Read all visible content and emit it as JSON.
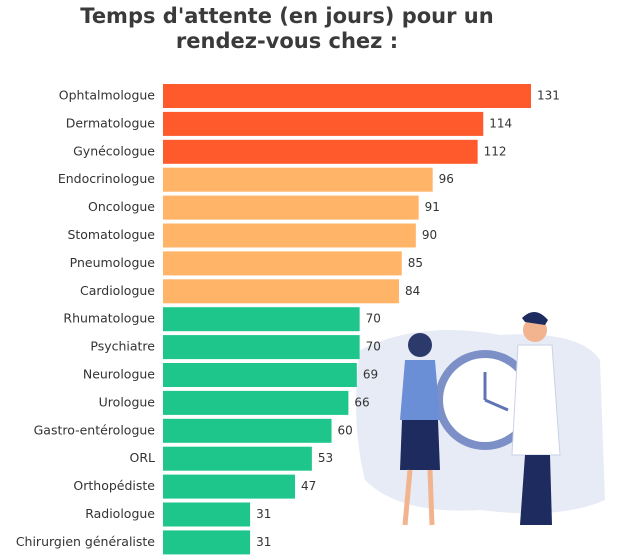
{
  "chart_data": {
    "type": "bar",
    "orientation": "horizontal",
    "title": "Temps d'attente (en jours) pour un rendez-vous chez :",
    "categories": [
      "Ophtalmologue",
      "Dermatologue",
      "Gynécologue",
      "Endocrinologue",
      "Oncologue",
      "Stomatologue",
      "Pneumologue",
      "Cardiologue",
      "Rhumatologue",
      "Psychiatre",
      "Neurologue",
      "Urologue",
      "Gastro-entérologue",
      "ORL",
      "Orthopédiste",
      "Radiologue",
      "Chirurgien généraliste"
    ],
    "values": [
      131,
      114,
      112,
      96,
      91,
      90,
      85,
      84,
      70,
      70,
      69,
      66,
      60,
      53,
      47,
      31,
      31
    ],
    "colors": [
      "#ff5a2c",
      "#ff5a2c",
      "#ff5a2c",
      "#ffb468",
      "#ffb468",
      "#ffb468",
      "#ffb468",
      "#ffb468",
      "#1fc68b",
      "#1fc68b",
      "#1fc68b",
      "#1fc68b",
      "#1fc68b",
      "#1fc68b",
      "#1fc68b",
      "#1fc68b",
      "#1fc68b"
    ]
  }
}
